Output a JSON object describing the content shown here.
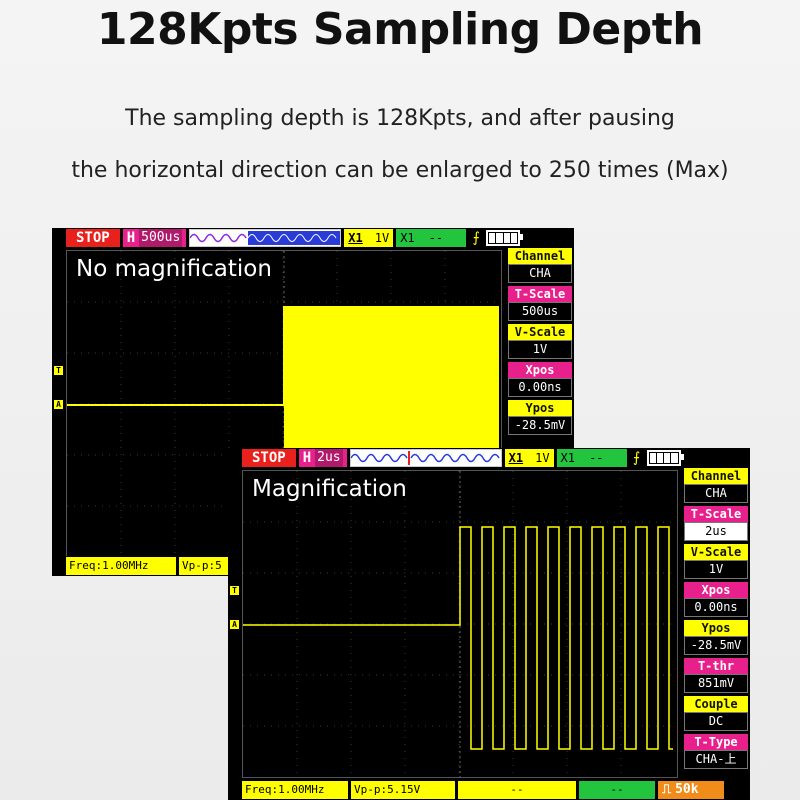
{
  "headline": "128Kpts Sampling Depth",
  "description": {
    "line1": "The sampling depth is 128Kpts, and after pausing",
    "line2": "the horizontal direction can be enlarged to 250 times (Max)"
  },
  "scope1": {
    "label": "No magnification",
    "status": "STOP",
    "time_prefix": "H",
    "time_scale": "500us",
    "ch1_coupling_icon": "X1",
    "ch1_volts": "1V",
    "ch2_coupling_icon": "X1",
    "ch2_volts": "--",
    "trigger_marker": "T",
    "channel_marker": "A",
    "side_panel": [
      {
        "label": "Channel",
        "value": "CHA",
        "color": "#ffff00"
      },
      {
        "label": "T-Scale",
        "value": "500us",
        "color": "#e8208c"
      },
      {
        "label": "V-Scale",
        "value": "1V",
        "color": "#ffff00"
      },
      {
        "label": "Xpos",
        "value": "0.00ns",
        "color": "#e8208c"
      },
      {
        "label": "Ypos",
        "value": "-28.5mV",
        "color": "#ffff00"
      }
    ],
    "freq": "Freq:1.00MHz",
    "vpp": "Vp-p:5"
  },
  "scope2": {
    "label": "Magnification",
    "status": "STOP",
    "time_prefix": "H",
    "time_scale": "2us",
    "ch1_coupling_icon": "X1",
    "ch1_volts": "1V",
    "ch2_coupling_icon": "X1",
    "ch2_volts": "--",
    "trigger_marker": "T",
    "channel_marker": "A",
    "side_panel": [
      {
        "label": "Channel",
        "value": "CHA",
        "color": "#ffff00"
      },
      {
        "label": "T-Scale",
        "value": "2us",
        "color": "#e8208c"
      },
      {
        "label": "V-Scale",
        "value": "1V",
        "color": "#ffff00"
      },
      {
        "label": "Xpos",
        "value": "0.00ns",
        "color": "#e8208c"
      },
      {
        "label": "Ypos",
        "value": "-28.5mV",
        "color": "#ffff00"
      },
      {
        "label": "T-thr",
        "value": "851mV",
        "color": "#e8208c"
      },
      {
        "label": "Couple",
        "value": "DC",
        "color": "#ffff00"
      },
      {
        "label": "T-Type",
        "value": "CHA-上",
        "color": "#e8208c"
      }
    ],
    "freq": "Freq:1.00MHz",
    "vpp": "Vp-p:5.15V",
    "dash1": "--",
    "dash2": "--",
    "pwm_value": "50k"
  },
  "colors": {
    "trace": "#ffff00",
    "stop": "#e8211c",
    "magenta": "#e8208c",
    "green": "#22c53d",
    "orange": "#f08c1a"
  }
}
